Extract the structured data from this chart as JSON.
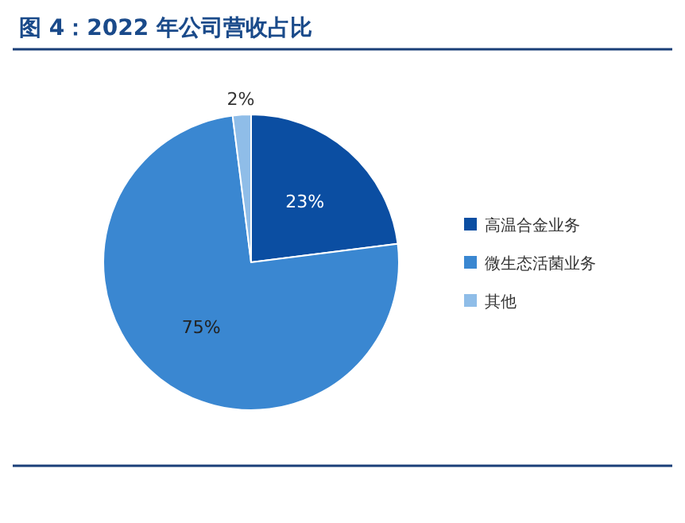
{
  "chart_data": {
    "type": "pie",
    "title": "图 4：2022 年公司营收占比",
    "categories": [
      "高温合金业务",
      "微生态活菌业务",
      "其他"
    ],
    "values": [
      23,
      75,
      2
    ],
    "colors": [
      "#0b4ea2",
      "#3a87d1",
      "#8fbde8"
    ],
    "value_labels": [
      "23%",
      "75%",
      "2%"
    ],
    "legend": "right"
  }
}
